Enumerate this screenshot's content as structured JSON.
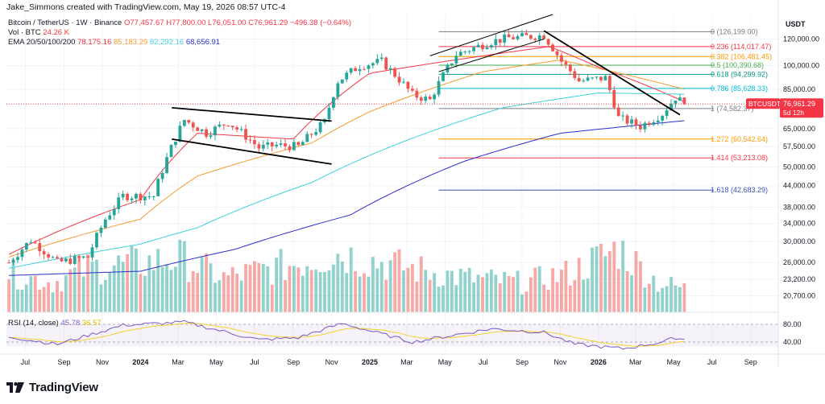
{
  "header": {
    "author_line": "Jake_Simmons created with TradingView.com, May 19, 2026 08:57 UTC-4",
    "title": "Bitcoin / TetherUS · 1W · Binance",
    "ohlc": {
      "o": "O77,457.67",
      "h": "H77,800.00",
      "l": "L76,051.00",
      "c": "C76,961.29",
      "chg": "−496.38 (−0.64%)"
    },
    "vol_label": "Vol · BTC",
    "vol_value": "24.26 K",
    "ema_label": "EMA 20/50/100/200",
    "ema_values": [
      "78,175.16",
      "85,183.29",
      "82,292.16",
      "68,656.91"
    ]
  },
  "rsi": {
    "label": "RSI (14, close)",
    "value": "45.78",
    "ma_value": "36.57",
    "levels": [
      80,
      40
    ]
  },
  "price_axis": {
    "currency": "USDT",
    "ticks": [
      "120,000.00",
      "100,000.00",
      "85,000.00",
      "65,000.00",
      "57,500.00",
      "50,000.00",
      "44,000.00",
      "38,000.00",
      "34,000.00",
      "30,000.00",
      "26,000.00",
      "23,200.00",
      "20,700.00"
    ],
    "current_tag": "BTCUSDT",
    "current_price": "76,961.29",
    "countdown": "5d 12h"
  },
  "time_axis": [
    "Jul",
    "Sep",
    "Nov",
    "2024",
    "Mar",
    "May",
    "Jul",
    "Sep",
    "Nov",
    "2025",
    "Mar",
    "May",
    "Jul",
    "Sep",
    "Nov",
    "2026",
    "Mar",
    "May",
    "Jul",
    "Sep"
  ],
  "fib_levels": [
    {
      "label": "0 (126,199.00)",
      "color": "#787b86",
      "price": 126199
    },
    {
      "label": "0.236 (114,017.47)",
      "color": "#f23645",
      "price": 114017.47
    },
    {
      "label": "0.382 (106,481.45)",
      "color": "#ff9800",
      "price": 106481.45
    },
    {
      "label": "0.5 (100,390.68)",
      "color": "#4caf50",
      "price": 100390.68
    },
    {
      "label": "0.618 (94,299.92)",
      "color": "#089981",
      "price": 94299.92
    },
    {
      "label": "0.786 (85,628.33)",
      "color": "#00bcd4",
      "price": 85628.33
    },
    {
      "label": "1 (74,582.37)",
      "color": "#787b86",
      "price": 74582.37
    },
    {
      "label": "1.272 (60,542.64)",
      "color": "#ff9800",
      "price": 60542.64
    },
    {
      "label": "1.414 (53,213.08)",
      "color": "#f23645",
      "price": 53213.08
    },
    {
      "label": "1.618 (42,683.29)",
      "color": "#3f51b5",
      "price": 42683.29
    }
  ],
  "colors": {
    "up": "#26a69a",
    "down": "#ef5350",
    "ema20": "#f23645",
    "ema50": "#f89a2d",
    "ema100": "#3fd2d9",
    "ema200": "#2a2ec9",
    "rsi": "#7e57c2",
    "rsi_ma": "#f5d02f",
    "trendline": "#000000"
  },
  "footer": {
    "brand": "TradingView"
  },
  "chart_data": {
    "type": "candlestick",
    "symbol": "BTCUSDT",
    "interval": "1W",
    "exchange": "Binance",
    "y_scale": "log",
    "ylim": [
      18500,
      142000
    ],
    "x_range": [
      "2023-06-01",
      "2026-10-15"
    ],
    "series_anchor_closes": [
      [
        "2023-06-05",
        26000
      ],
      [
        "2023-07-10",
        30300
      ],
      [
        "2023-08-21",
        26000
      ],
      [
        "2023-10-09",
        27000
      ],
      [
        "2023-11-06",
        35000
      ],
      [
        "2023-12-04",
        41000
      ],
      [
        "2024-01-22",
        41000
      ],
      [
        "2024-03-11",
        69000
      ],
      [
        "2024-04-15",
        63000
      ],
      [
        "2024-05-20",
        68000
      ],
      [
        "2024-07-08",
        57000
      ],
      [
        "2024-08-05",
        58000
      ],
      [
        "2024-09-09",
        57500
      ],
      [
        "2024-10-21",
        68000
      ],
      [
        "2024-11-11",
        90000
      ],
      [
        "2024-12-16",
        100000
      ],
      [
        "2025-01-20",
        103000
      ],
      [
        "2025-03-10",
        82000
      ],
      [
        "2025-04-07",
        79000
      ],
      [
        "2025-05-19",
        108000
      ],
      [
        "2025-07-14",
        118000
      ],
      [
        "2025-08-11",
        121000
      ],
      [
        "2025-10-06",
        123000
      ],
      [
        "2025-11-03",
        103000
      ],
      [
        "2025-12-01",
        90000
      ],
      [
        "2026-01-12",
        92000
      ],
      [
        "2026-02-02",
        70000
      ],
      [
        "2026-03-09",
        66000
      ],
      [
        "2026-04-13",
        72000
      ],
      [
        "2026-05-04",
        80500
      ],
      [
        "2026-05-18",
        76961.29
      ]
    ],
    "ema_lines": {
      "EMA20": [
        [
          "2023-06-05",
          27500
        ],
        [
          "2024-01-01",
          40000
        ],
        [
          "2024-04-01",
          63000
        ],
        [
          "2024-09-01",
          60500
        ],
        [
          "2025-01-01",
          95000
        ],
        [
          "2025-07-01",
          107000
        ],
        [
          "2025-10-15",
          114000
        ],
        [
          "2026-01-01",
          99000
        ],
        [
          "2026-05-18",
          78175.16
        ]
      ],
      "EMA50": [
        [
          "2023-06-05",
          27000
        ],
        [
          "2024-01-01",
          35000
        ],
        [
          "2024-04-01",
          47000
        ],
        [
          "2024-10-01",
          59000
        ],
        [
          "2025-01-01",
          73000
        ],
        [
          "2025-07-01",
          96000
        ],
        [
          "2025-11-01",
          104000
        ],
        [
          "2026-05-18",
          85183.29
        ]
      ],
      "EMA100": [
        [
          "2023-06-05",
          25000
        ],
        [
          "2024-01-01",
          29500
        ],
        [
          "2024-04-01",
          33000
        ],
        [
          "2024-10-01",
          45000
        ],
        [
          "2025-03-01",
          60000
        ],
        [
          "2025-08-01",
          75000
        ],
        [
          "2026-01-01",
          83000
        ],
        [
          "2026-05-18",
          82292.16
        ]
      ],
      "EMA200": [
        [
          "2023-06-05",
          23800
        ],
        [
          "2024-01-01",
          24500
        ],
        [
          "2024-06-01",
          28500
        ],
        [
          "2024-12-01",
          36000
        ],
        [
          "2025-06-01",
          52000
        ],
        [
          "2025-11-01",
          63000
        ],
        [
          "2026-05-18",
          68656.91
        ]
      ]
    },
    "trendlines": [
      [
        [
          "2024-02-20",
          75000
        ],
        [
          "2024-11-01",
          68500
        ]
      ],
      [
        [
          "2024-02-20",
          60500
        ],
        [
          "2024-11-01",
          51000
        ]
      ],
      [
        [
          "2025-10-06",
          127000
        ],
        [
          "2026-05-11",
          71500
        ]
      ],
      [
        [
          "2025-04-07",
          107000
        ],
        [
          "2025-10-20",
          142000
        ]
      ],
      [
        [
          "2025-04-21",
          96000
        ],
        [
          "2025-10-06",
          120000
        ]
      ]
    ],
    "volume_k_anchors": [
      [
        "2023-06-05",
        40
      ],
      [
        "2023-08-14",
        30
      ],
      [
        "2023-10-09",
        45
      ],
      [
        "2024-01-08",
        50
      ],
      [
        "2024-03-04",
        55
      ],
      [
        "2024-05-13",
        35
      ],
      [
        "2024-08-05",
        45
      ],
      [
        "2024-11-11",
        60
      ],
      [
        "2025-03-03",
        45
      ],
      [
        "2025-06-02",
        35
      ],
      [
        "2025-09-01",
        30
      ],
      [
        "2025-11-17",
        40
      ],
      [
        "2026-02-02",
        65
      ],
      [
        "2026-04-06",
        30
      ],
      [
        "2026-05-18",
        24.26
      ]
    ],
    "rsi_anchors": [
      [
        "2023-06-05",
        52
      ],
      [
        "2023-08-21",
        35
      ],
      [
        "2023-12-04",
        78
      ],
      [
        "2024-03-11",
        85
      ],
      [
        "2024-07-08",
        45
      ],
      [
        "2024-09-09",
        50
      ],
      [
        "2024-11-18",
        82
      ],
      [
        "2025-03-10",
        40
      ],
      [
        "2025-07-14",
        70
      ],
      [
        "2025-10-06",
        62
      ],
      [
        "2025-11-24",
        35
      ],
      [
        "2026-02-09",
        25
      ],
      [
        "2026-04-13",
        40
      ],
      [
        "2026-05-04",
        50
      ],
      [
        "2026-05-18",
        45.78
      ]
    ]
  }
}
